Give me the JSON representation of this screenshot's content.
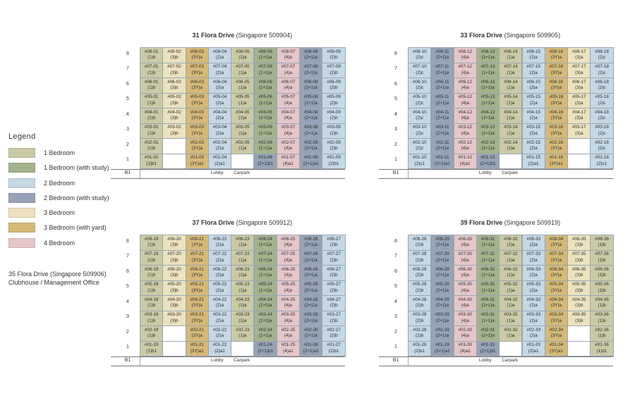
{
  "colors": {
    "1": "#cbcaa7",
    "1s": "#a3b38d",
    "2": "#c5d8e6",
    "2s": "#98a2b6",
    "3": "#ede2bf",
    "3y": "#d5b979",
    "4": "#e6c7c9",
    "empty": "#ffffff"
  },
  "legend": {
    "title": "Legend",
    "items": [
      {
        "code": "1",
        "label": "1 Bedroom"
      },
      {
        "code": "1s",
        "label": "1 Bedroom (with study)"
      },
      {
        "code": "2",
        "label": "2 Bedroom"
      },
      {
        "code": "2s",
        "label": "2 Bedroom (with study)"
      },
      {
        "code": "3",
        "label": "3 Bedroom"
      },
      {
        "code": "3y",
        "label": "3 Bedroom (with yard)"
      },
      {
        "code": "4",
        "label": "4 Bedroom"
      }
    ]
  },
  "clubhouse": {
    "line1": "35 Flora Drive (Singapore 509906)",
    "line2": "Clubhouse / Management Office"
  },
  "basement_label": "B1",
  "lobby_label": "Lobby",
  "carpark_label": "Carpark",
  "blocks": [
    {
      "name": "31 Flora Drive",
      "postal": "(Singapore 509904)",
      "floors": [
        "8",
        "7",
        "6",
        "5",
        "4",
        "3",
        "2",
        "1"
      ],
      "columns": [
        {
          "stack": "01",
          "types": {
            "8": "(1)b",
            "7": "(1)b",
            "6": "(1)b",
            "5": "(1)b",
            "4": "(1)b",
            "3": "(1)b",
            "2": "(1)b",
            "1": "(1)b1"
          }
        },
        {
          "stack": "02",
          "types": {
            "8": "(3)b",
            "7": "(3)b",
            "6": "(3)b",
            "5": "(3)b",
            "4": "(3)b",
            "3": "(3)b"
          }
        },
        {
          "stack": "03",
          "types": {
            "8": "(3Y)a",
            "7": "(3Y)a",
            "6": "(3Y)a",
            "5": "(3Y)a",
            "4": "(3Y)a",
            "3": "(3Y)a",
            "2": "(3Y)a",
            "1": "(3Y)a1"
          }
        },
        {
          "stack": "04",
          "types": {
            "8": "(2)a",
            "7": "(2)a",
            "6": "(2)a",
            "5": "(2)a",
            "4": "(2)a",
            "3": "(2)a",
            "2": "(2)a",
            "1": "(2)a1"
          }
        },
        {
          "stack": "05",
          "types": {
            "8": "(1)a",
            "7": "(1)a",
            "6": "(1)a",
            "5": "(1)a",
            "4": "(1)a",
            "3": "(1)a",
            "2": "(1)a"
          }
        },
        {
          "stack": "06",
          "types": {
            "8": "(1+1)a",
            "7": "(1+1)a",
            "6": "(1+1)a",
            "5": "(1+1)a",
            "4": "(1+1)a",
            "3": "(1+1)a",
            "2": "(1+1)a",
            "1": "(2+1)b1"
          }
        },
        {
          "stack": "07",
          "types": {
            "8": "(4)a",
            "7": "(4)a",
            "6": "(4)a",
            "5": "(4)a",
            "4": "(4)a",
            "3": "(4)a",
            "2": "(4)a",
            "1": "(4)a1"
          }
        },
        {
          "stack": "08",
          "types": {
            "8": "(2+1)a",
            "7": "(2+1)a",
            "6": "(2+1)a",
            "5": "(2+1)a",
            "4": "(2+1)a",
            "3": "(2+1)a",
            "2": "(2+1)a",
            "1": "(2+1)a1"
          }
        },
        {
          "stack": "09",
          "types": {
            "8": "(2)b",
            "7": "(2)b",
            "6": "(2)b",
            "5": "(2)b",
            "4": "(2)b",
            "3": "(2)b",
            "2": "(2)b",
            "1": "(2)b1"
          }
        }
      ]
    },
    {
      "name": "33 Flora Drive",
      "postal": "(Singapore 509905)",
      "floors": [
        "8",
        "7",
        "6",
        "5",
        "4",
        "3",
        "2",
        "1"
      ],
      "columns": [
        {
          "stack": "10",
          "types": {
            "8": "(2)c",
            "7": "(2)c",
            "6": "(2)c",
            "5": "(2)c",
            "4": "(2)c",
            "3": "(2)c",
            "2": "(2)c",
            "1": "(2)c1"
          }
        },
        {
          "stack": "11",
          "types": {
            "8": "(2+1)a",
            "7": "(2+1)a",
            "6": "(2+1)a",
            "5": "(2+1)a",
            "4": "(2+1)a",
            "3": "(2+1)a",
            "2": "(2+1)a",
            "1": "(2+1)a1"
          }
        },
        {
          "stack": "12",
          "types": {
            "8": "(4)a",
            "7": "(4)a",
            "6": "(4)a",
            "5": "(4)a",
            "4": "(4)a",
            "3": "(4)a",
            "2": "(4)a",
            "1": "(4)a1"
          }
        },
        {
          "stack": "13",
          "types": {
            "8": "(1+1)a",
            "7": "(1+1)a",
            "6": "(1+1)a",
            "5": "(1+1)a",
            "4": "(1+1)a",
            "3": "(1+1)a",
            "2": "(1+1)a",
            "1": "(2+1)b1"
          }
        },
        {
          "stack": "14",
          "types": {
            "8": "(1)a",
            "7": "(1)a",
            "6": "(1)a",
            "5": "(1)a",
            "4": "(1)a",
            "3": "(1)a",
            "2": "(1)a"
          }
        },
        {
          "stack": "15",
          "types": {
            "8": "(2)a",
            "7": "(2)a",
            "6": "(2)a",
            "5": "(2)a",
            "4": "(2)a",
            "3": "(2)a",
            "2": "(2)a",
            "1": "(2)a1"
          }
        },
        {
          "stack": "16",
          "types": {
            "8": "(3Y)a",
            "7": "(3Y)a",
            "6": "(3Y)a",
            "5": "(3Y)a",
            "4": "(3Y)a",
            "3": "(3Y)a",
            "2": "(3Y)a",
            "1": "(3Y)a1"
          }
        },
        {
          "stack": "17",
          "types": {
            "8": "(3)a",
            "7": "(3)a",
            "6": "(3)a",
            "5": "(3)a",
            "4": "(3)a",
            "3": "(3)a"
          }
        },
        {
          "stack": "18",
          "types": {
            "8": "(2)c",
            "7": "(2)c",
            "6": "(2)c",
            "5": "(2)c",
            "4": "(2)c",
            "3": "(2)c",
            "2": "(2)c",
            "1": "(2)c1"
          }
        }
      ]
    },
    {
      "name": "37 Flora Drive",
      "postal": "(Singapore 509912)",
      "floors": [
        "8",
        "7",
        "6",
        "5",
        "4",
        "3",
        "2",
        "1"
      ],
      "columns": [
        {
          "stack": "19",
          "types": {
            "8": "(1)b",
            "7": "(1)b",
            "6": "(1)b",
            "5": "(1)b",
            "4": "(1)b",
            "3": "(1)b",
            "2": "(1)b",
            "1": "(1)b1"
          }
        },
        {
          "stack": "20",
          "types": {
            "8": "(3)b",
            "7": "(3)b",
            "6": "(3)b",
            "5": "(3)b",
            "4": "(3)b",
            "3": "(3)b"
          }
        },
        {
          "stack": "21",
          "types": {
            "8": "(3Y)a",
            "7": "(3Y)a",
            "6": "(3Y)a",
            "5": "(3Y)a",
            "4": "(3Y)a",
            "3": "(3Y)a",
            "2": "(3Y)a",
            "1": "(3Y)a1"
          }
        },
        {
          "stack": "22",
          "types": {
            "8": "(2)a",
            "7": "(2)a",
            "6": "(2)a",
            "5": "(2)a",
            "4": "(2)a",
            "3": "(2)a",
            "2": "(2)a",
            "1": "(2)a1"
          }
        },
        {
          "stack": "23",
          "types": {
            "8": "(1)a",
            "7": "(1)a",
            "6": "(1)a",
            "5": "(1)a",
            "4": "(1)a",
            "3": "(1)a",
            "2": "(1)a"
          }
        },
        {
          "stack": "24",
          "types": {
            "8": "(1+1)a",
            "7": "(1+1)a",
            "6": "(1+1)a",
            "5": "(1+1)a",
            "4": "(1+1)a",
            "3": "(1+1)a",
            "2": "(1+1)a",
            "1": "(2+1)b1"
          }
        },
        {
          "stack": "25",
          "types": {
            "8": "(4)a",
            "7": "(4)a",
            "6": "(4)a",
            "5": "(4)a",
            "4": "(4)a",
            "3": "(4)a",
            "2": "(4)a",
            "1": "(4)a1"
          }
        },
        {
          "stack": "26",
          "types": {
            "8": "(2+1)a",
            "7": "(2+1)a",
            "6": "(2+1)a",
            "5": "(2+1)a",
            "4": "(2+1)a",
            "3": "(2+1)a",
            "2": "(2+1)a",
            "1": "(2+1)a1"
          }
        },
        {
          "stack": "27",
          "types": {
            "8": "(2)b",
            "7": "(2)b",
            "6": "(2)b",
            "5": "(2)b",
            "4": "(2)b",
            "3": "(2)b",
            "2": "(2)b",
            "1": "(2)b1"
          }
        }
      ]
    },
    {
      "name": "39 Flora Drive",
      "postal": "(Singapore 509919)",
      "floors": [
        "8",
        "7",
        "6",
        "5",
        "4",
        "3",
        "2",
        "1"
      ],
      "columns": [
        {
          "stack": "28",
          "types": {
            "8": "(2)b",
            "7": "(2)b",
            "6": "(2)b",
            "5": "(2)b",
            "4": "(2)b",
            "3": "(2)b",
            "2": "(2)b",
            "1": "(2)b1"
          }
        },
        {
          "stack": "29",
          "types": {
            "8": "(2+1)a",
            "7": "(2+1)a",
            "6": "(2+1)a",
            "5": "(2+1)a",
            "4": "(2+1)a",
            "3": "(2+1)a",
            "2": "(2+1)a",
            "1": "(2+1)a1"
          }
        },
        {
          "stack": "30",
          "types": {
            "8": "(4)a",
            "7": "(4)a",
            "6": "(4)a",
            "5": "(4)a",
            "4": "(4)a",
            "3": "(4)a",
            "2": "(4)a",
            "1": "(4)a1"
          }
        },
        {
          "stack": "31",
          "types": {
            "8": "(1+1)a",
            "7": "(1+1)a",
            "6": "(1+1)a",
            "5": "(1+1)a",
            "4": "(1+1)a",
            "3": "(1+1)a",
            "2": "(1+1)a",
            "1": "(2+1)b1"
          }
        },
        {
          "stack": "32",
          "types": {
            "8": "(1)a",
            "7": "(1)a",
            "6": "(1)a",
            "5": "(1)a",
            "4": "(1)a",
            "3": "(1)a",
            "2": "(1)a"
          }
        },
        {
          "stack": "33",
          "types": {
            "8": "(2)a",
            "7": "(2)a",
            "6": "(2)a",
            "5": "(2)a",
            "4": "(2)a",
            "3": "(2)a",
            "2": "(2)a",
            "1": "(2)a1"
          }
        },
        {
          "stack": "34",
          "types": {
            "8": "(3Y)a",
            "7": "(3Y)a",
            "6": "(3Y)a",
            "5": "(3Y)a",
            "4": "(3Y)a",
            "3": "(3Y)a",
            "2": "(3Y)a",
            "1": "(3Y)a1"
          }
        },
        {
          "stack": "35",
          "types": {
            "8": "(3)b",
            "7": "(3)b",
            "6": "(3)b",
            "5": "(3)b",
            "4": "(3)b",
            "3": "(3)b"
          }
        },
        {
          "stack": "36",
          "types": {
            "8": "(1)b",
            "7": "(1)b",
            "6": "(1)b",
            "5": "(1)b",
            "4": "(1)b",
            "3": "(1)b",
            "2": "(1)b",
            "1": "(1)b1"
          }
        }
      ]
    }
  ]
}
